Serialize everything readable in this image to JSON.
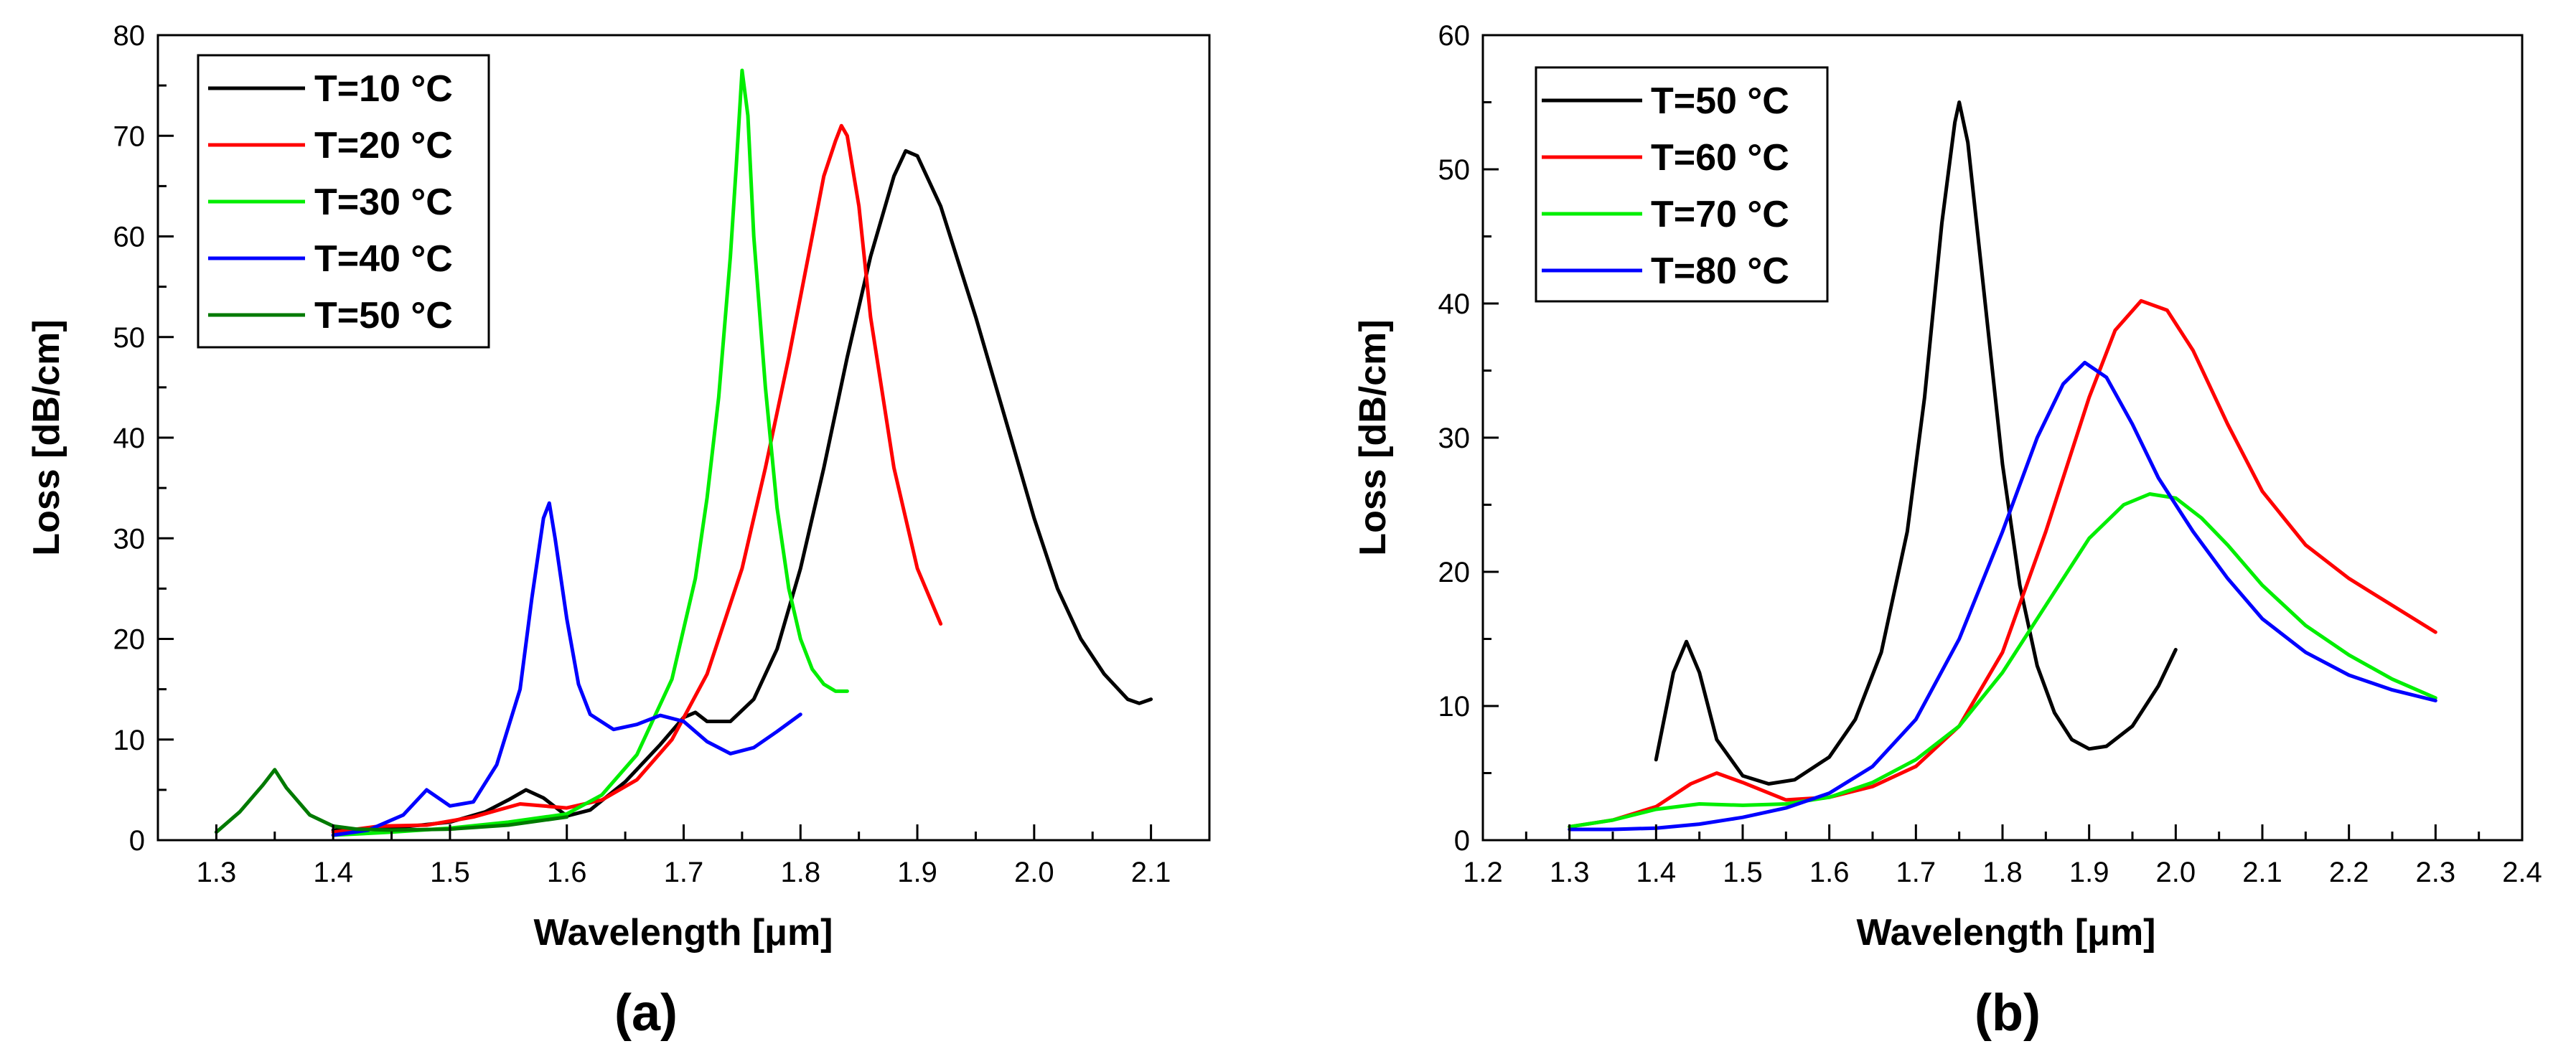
{
  "chart_data": [
    {
      "type": "line",
      "panel_label": "(a)",
      "xlabel": "Wavelength [μm]",
      "ylabel": "Loss [dB/cm]",
      "xlim": [
        1.25,
        2.15
      ],
      "ylim": [
        0,
        80
      ],
      "xticks": [
        1.3,
        1.4,
        1.5,
        1.6,
        1.7,
        1.8,
        1.9,
        2.0,
        2.1
      ],
      "xtick_labels": [
        "1.3",
        "1.4",
        "1.5",
        "1.6",
        "1.7",
        "1.8",
        "1.9",
        "2.0",
        "2.1"
      ],
      "yticks": [
        0,
        10,
        20,
        30,
        40,
        50,
        60,
        70,
        80
      ],
      "ytick_labels": [
        "0",
        "10",
        "20",
        "30",
        "40",
        "50",
        "60",
        "70",
        "80"
      ],
      "legend_position": "top-left",
      "series": [
        {
          "name": "T=10 °C",
          "color": "#000000",
          "x": [
            1.4,
            1.45,
            1.5,
            1.53,
            1.55,
            1.565,
            1.58,
            1.6,
            1.62,
            1.65,
            1.68,
            1.7,
            1.71,
            1.72,
            1.74,
            1.76,
            1.78,
            1.8,
            1.82,
            1.84,
            1.86,
            1.88,
            1.89,
            1.9,
            1.92,
            1.95,
            1.98,
            2.0,
            2.02,
            2.04,
            2.06,
            2.08,
            2.09,
            2.1
          ],
          "values": [
            1.0,
            1.2,
            1.8,
            2.8,
            4.0,
            5.0,
            4.2,
            2.4,
            3.0,
            5.8,
            9.5,
            12.2,
            12.7,
            11.8,
            11.8,
            14.0,
            19.0,
            27.0,
            37.0,
            48.0,
            58.0,
            66.0,
            68.5,
            68.0,
            63.0,
            52.0,
            40.0,
            32.0,
            25.0,
            20.0,
            16.5,
            14.0,
            13.6,
            14.0
          ]
        },
        {
          "name": "T=20 °C",
          "color": "#ff0000",
          "x": [
            1.4,
            1.44,
            1.48,
            1.52,
            1.56,
            1.58,
            1.6,
            1.63,
            1.66,
            1.69,
            1.72,
            1.75,
            1.77,
            1.79,
            1.8,
            1.81,
            1.82,
            1.83,
            1.835,
            1.84,
            1.85,
            1.86,
            1.88,
            1.9,
            1.92
          ],
          "values": [
            0.8,
            1.4,
            1.5,
            2.3,
            3.6,
            3.4,
            3.2,
            4.0,
            6.0,
            10.0,
            16.5,
            27.0,
            37.0,
            48.0,
            54.0,
            60.0,
            66.0,
            69.5,
            71.0,
            70.0,
            63.0,
            52.0,
            37.0,
            27.0,
            21.5
          ]
        },
        {
          "name": "T=30 °C",
          "color": "#00ee00",
          "x": [
            1.4,
            1.45,
            1.5,
            1.55,
            1.6,
            1.63,
            1.66,
            1.69,
            1.71,
            1.72,
            1.73,
            1.74,
            1.745,
            1.75,
            1.755,
            1.76,
            1.77,
            1.78,
            1.79,
            1.8,
            1.81,
            1.82,
            1.83,
            1.84
          ],
          "values": [
            0.5,
            0.8,
            1.2,
            1.8,
            2.6,
            4.5,
            8.5,
            16.0,
            26.0,
            34.0,
            44.0,
            58.0,
            67.0,
            76.5,
            72.0,
            60.0,
            45.0,
            33.0,
            25.0,
            20.0,
            17.0,
            15.5,
            14.8,
            14.8
          ]
        },
        {
          "name": "T=40 °C",
          "color": "#0000ff",
          "x": [
            1.4,
            1.43,
            1.46,
            1.48,
            1.5,
            1.52,
            1.54,
            1.56,
            1.57,
            1.58,
            1.585,
            1.59,
            1.6,
            1.61,
            1.62,
            1.64,
            1.66,
            1.68,
            1.7,
            1.72,
            1.74,
            1.76,
            1.78,
            1.8
          ],
          "values": [
            0.5,
            1.0,
            2.5,
            5.0,
            3.4,
            3.8,
            7.5,
            15.0,
            24.0,
            32.0,
            33.5,
            30.0,
            22.0,
            15.5,
            12.5,
            11.0,
            11.5,
            12.4,
            11.8,
            9.8,
            8.6,
            9.2,
            10.8,
            12.5
          ]
        },
        {
          "name": "T=50 °C",
          "color": "#007a00",
          "x": [
            1.3,
            1.32,
            1.34,
            1.35,
            1.36,
            1.38,
            1.4,
            1.42,
            1.45,
            1.5,
            1.55,
            1.6
          ],
          "values": [
            0.8,
            2.8,
            5.5,
            7.0,
            5.2,
            2.5,
            1.4,
            1.1,
            1.0,
            1.1,
            1.5,
            2.3
          ]
        }
      ]
    },
    {
      "type": "line",
      "panel_label": "(b)",
      "xlabel": "Wavelength [μm]",
      "ylabel": "Loss [dB/cm]",
      "xlim": [
        1.2,
        2.4
      ],
      "ylim": [
        0,
        60
      ],
      "xticks": [
        1.2,
        1.3,
        1.4,
        1.5,
        1.6,
        1.7,
        1.8,
        1.9,
        2.0,
        2.1,
        2.2,
        2.3,
        2.4
      ],
      "xtick_labels": [
        "1.2",
        "1.3",
        "1.4",
        "1.5",
        "1.6",
        "1.7",
        "1.8",
        "1.9",
        "2.0",
        "2.1",
        "2.2",
        "2.3",
        "2.4"
      ],
      "yticks": [
        0,
        10,
        20,
        30,
        40,
        50,
        60
      ],
      "ytick_labels": [
        "0",
        "10",
        "20",
        "30",
        "40",
        "50",
        "60"
      ],
      "legend_position": "top-left",
      "series": [
        {
          "name": "T=50 °C",
          "color": "#000000",
          "x": [
            1.4,
            1.42,
            1.435,
            1.45,
            1.47,
            1.5,
            1.53,
            1.56,
            1.6,
            1.63,
            1.66,
            1.69,
            1.71,
            1.73,
            1.745,
            1.75,
            1.76,
            1.78,
            1.8,
            1.82,
            1.84,
            1.86,
            1.88,
            1.9,
            1.92,
            1.95,
            1.98,
            2.0
          ],
          "values": [
            6.0,
            12.5,
            14.8,
            12.5,
            7.5,
            4.8,
            4.2,
            4.5,
            6.2,
            9.0,
            14.0,
            23.0,
            33.0,
            46.0,
            53.5,
            55.0,
            52.0,
            40.0,
            28.0,
            19.0,
            13.0,
            9.5,
            7.5,
            6.8,
            7.0,
            8.5,
            11.5,
            14.2
          ]
        },
        {
          "name": "T=60 °C",
          "color": "#ff0000",
          "x": [
            1.3,
            1.35,
            1.4,
            1.44,
            1.47,
            1.5,
            1.55,
            1.6,
            1.65,
            1.7,
            1.75,
            1.8,
            1.85,
            1.9,
            1.93,
            1.96,
            1.99,
            2.02,
            2.06,
            2.1,
            2.15,
            2.2,
            2.25,
            2.3
          ],
          "values": [
            1.0,
            1.5,
            2.5,
            4.2,
            5.0,
            4.3,
            3.0,
            3.2,
            4.0,
            5.5,
            8.5,
            14.0,
            23.0,
            33.0,
            38.0,
            40.2,
            39.5,
            36.5,
            31.0,
            26.0,
            22.0,
            19.5,
            17.5,
            15.5
          ]
        },
        {
          "name": "T=70 °C",
          "color": "#00ee00",
          "x": [
            1.3,
            1.35,
            1.4,
            1.45,
            1.5,
            1.55,
            1.6,
            1.65,
            1.7,
            1.75,
            1.8,
            1.85,
            1.9,
            1.94,
            1.97,
            2.0,
            2.03,
            2.06,
            2.1,
            2.15,
            2.2,
            2.25,
            2.3
          ],
          "values": [
            1.0,
            1.5,
            2.3,
            2.7,
            2.6,
            2.7,
            3.2,
            4.3,
            6.0,
            8.5,
            12.5,
            17.5,
            22.5,
            25.0,
            25.8,
            25.5,
            24.0,
            22.0,
            19.0,
            16.0,
            13.8,
            12.0,
            10.6
          ]
        },
        {
          "name": "T=80 °C",
          "color": "#0000ff",
          "x": [
            1.3,
            1.35,
            1.4,
            1.45,
            1.5,
            1.55,
            1.6,
            1.65,
            1.7,
            1.75,
            1.8,
            1.84,
            1.87,
            1.895,
            1.92,
            1.95,
            1.98,
            2.02,
            2.06,
            2.1,
            2.15,
            2.2,
            2.25,
            2.3
          ],
          "values": [
            0.8,
            0.8,
            0.9,
            1.2,
            1.7,
            2.4,
            3.5,
            5.5,
            9.0,
            15.0,
            23.0,
            30.0,
            34.0,
            35.6,
            34.5,
            31.0,
            27.0,
            23.0,
            19.5,
            16.5,
            14.0,
            12.3,
            11.2,
            10.4
          ]
        }
      ]
    }
  ]
}
